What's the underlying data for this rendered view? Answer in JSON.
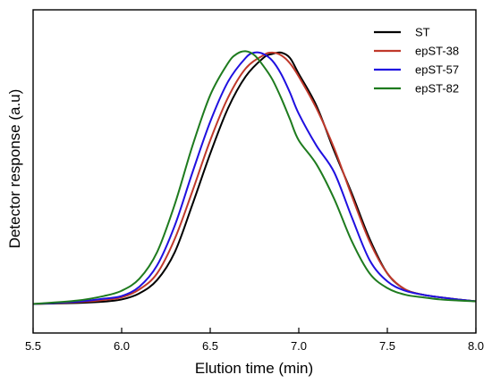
{
  "chart_data": {
    "type": "line",
    "title": "",
    "xlabel": "Elution time (min)",
    "ylabel": "Detector response (a.u)",
    "xlim": [
      5.5,
      8.0
    ],
    "ylim": [
      0,
      1
    ],
    "xticks": [
      5.5,
      6.0,
      6.5,
      7.0,
      7.5,
      8.0
    ],
    "xtick_labels": [
      "5.5",
      "6.0",
      "6.5",
      "7.0",
      "7.5",
      "8.0"
    ],
    "grid": false,
    "legend_position": "top-right",
    "series": [
      {
        "name": "ST",
        "color": "#000000",
        "x": [
          5.5,
          5.75,
          5.9,
          6.0,
          6.1,
          6.2,
          6.3,
          6.4,
          6.5,
          6.6,
          6.7,
          6.8,
          6.85,
          6.9,
          6.95,
          7.0,
          7.1,
          7.2,
          7.3,
          7.4,
          7.5,
          7.6,
          7.7,
          7.8,
          7.9,
          8.0
        ],
        "y": [
          0.005,
          0.009,
          0.014,
          0.022,
          0.045,
          0.095,
          0.2,
          0.38,
          0.57,
          0.74,
          0.86,
          0.93,
          0.945,
          0.95,
          0.93,
          0.87,
          0.75,
          0.58,
          0.42,
          0.25,
          0.12,
          0.06,
          0.04,
          0.03,
          0.022,
          0.015
        ]
      },
      {
        "name": "epST-38",
        "color": "#c0392b",
        "x": [
          5.5,
          5.75,
          5.9,
          6.0,
          6.1,
          6.2,
          6.3,
          6.4,
          6.5,
          6.6,
          6.7,
          6.8,
          6.85,
          6.9,
          6.95,
          7.0,
          7.1,
          7.2,
          7.3,
          7.4,
          7.5,
          7.6,
          7.7,
          7.8,
          7.9,
          8.0
        ],
        "y": [
          0.005,
          0.012,
          0.02,
          0.03,
          0.06,
          0.12,
          0.25,
          0.43,
          0.62,
          0.78,
          0.89,
          0.94,
          0.95,
          0.94,
          0.91,
          0.86,
          0.74,
          0.59,
          0.41,
          0.24,
          0.12,
          0.06,
          0.04,
          0.03,
          0.022,
          0.015
        ]
      },
      {
        "name": "epST-57",
        "color": "#1f10e0",
        "x": [
          5.5,
          5.75,
          5.9,
          6.0,
          6.1,
          6.2,
          6.3,
          6.4,
          6.5,
          6.6,
          6.7,
          6.75,
          6.8,
          6.85,
          6.9,
          6.95,
          7.0,
          7.1,
          7.2,
          7.3,
          7.4,
          7.5,
          7.6,
          7.7,
          7.8,
          7.9,
          8.0
        ],
        "y": [
          0.005,
          0.014,
          0.025,
          0.035,
          0.07,
          0.15,
          0.3,
          0.5,
          0.69,
          0.84,
          0.93,
          0.95,
          0.945,
          0.92,
          0.87,
          0.8,
          0.72,
          0.6,
          0.5,
          0.33,
          0.17,
          0.09,
          0.055,
          0.04,
          0.03,
          0.022,
          0.015
        ]
      },
      {
        "name": "epST-82",
        "color": "#1e7b1e",
        "x": [
          5.5,
          5.75,
          5.9,
          6.0,
          6.1,
          6.2,
          6.3,
          6.4,
          6.5,
          6.6,
          6.65,
          6.7,
          6.75,
          6.8,
          6.85,
          6.9,
          6.95,
          7.0,
          7.1,
          7.2,
          7.3,
          7.4,
          7.5,
          7.6,
          7.7,
          7.8,
          7.9,
          8.0
        ],
        "y": [
          0.005,
          0.018,
          0.035,
          0.055,
          0.1,
          0.2,
          0.38,
          0.6,
          0.79,
          0.91,
          0.945,
          0.955,
          0.94,
          0.9,
          0.85,
          0.78,
          0.7,
          0.62,
          0.53,
          0.4,
          0.24,
          0.12,
          0.065,
          0.04,
          0.03,
          0.022,
          0.018,
          0.015
        ]
      }
    ]
  }
}
